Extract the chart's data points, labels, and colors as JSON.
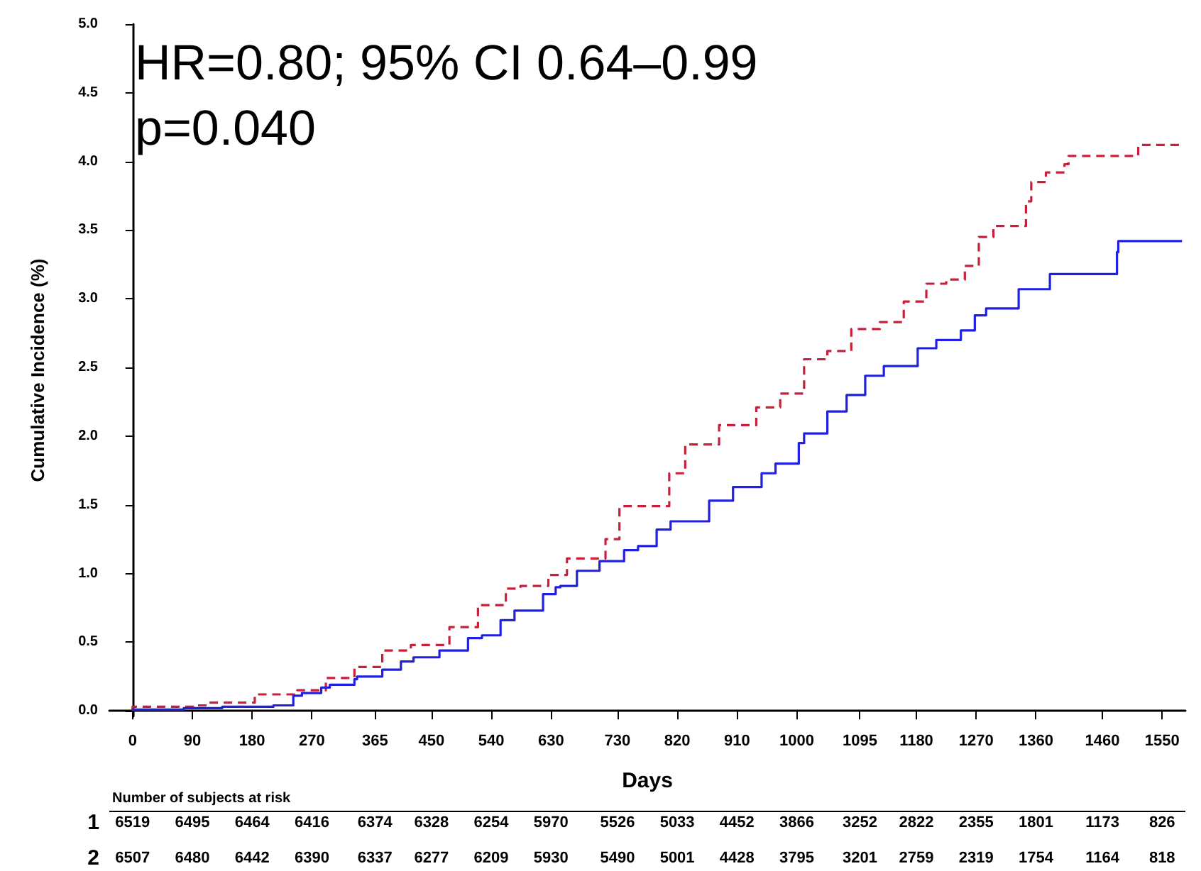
{
  "chart_data": {
    "type": "step",
    "xlabel": "Days",
    "ylabel": "Cumulative Incidence (%)",
    "annotations": [
      "HR=0.80; 95% CI 0.64–0.99",
      "p=0.040",
      "Number of subjects at risk",
      "1 6519 6495 6464 6416 6374 6328 6254 5970 5526 5033 4452 3866 3252 2822 2355 1801 1173 826",
      "2 6507 6480 6442 6390 6337 6277 6209 5930 5490 5001 4428 3795 3201 2759 2319 1754 1164 818"
    ],
    "xlim": [
      -35,
      1585
    ],
    "xticks": [
      0,
      90,
      180,
      270,
      365,
      450,
      540,
      630,
      730,
      820,
      910,
      1000,
      1095,
      1180,
      1270,
      1360,
      1460,
      1550
    ],
    "ylim": [
      -0.04,
      5.0
    ],
    "yticks": [
      {
        "value": 0,
        "label": "0.0"
      },
      {
        "value": 0.5,
        "label": "0.5"
      },
      {
        "value": 1,
        "label": "1.0"
      },
      {
        "value": 1.5,
        "label": "1.5"
      },
      {
        "value": 2,
        "label": "2.0"
      },
      {
        "value": 2.5,
        "label": "2.5"
      },
      {
        "value": 3,
        "label": "3.0"
      },
      {
        "value": 3.5,
        "label": "3.5"
      },
      {
        "value": 4,
        "label": "4.0"
      },
      {
        "value": 4.5,
        "label": "4.5"
      },
      {
        "value": 5,
        "label": "5.0"
      }
    ],
    "grid": false,
    "marker": "none",
    "series": [
      {
        "color": "#c8203a",
        "line_style": "dashed",
        "x": [
          0,
          92,
          113,
          184,
          248,
          291,
          334,
          376,
          419,
          477,
          520,
          562,
          584,
          626,
          654,
          712,
          733,
          776,
          808,
          832,
          883,
          939,
          975,
          1011,
          1046,
          1082,
          1125,
          1161,
          1195,
          1225,
          1253,
          1274,
          1296,
          1311,
          1345,
          1353,
          1375,
          1403,
          1409,
          1430,
          1514,
          1516,
          1580
        ],
        "values": [
          0,
          0.03,
          0.04,
          0.06,
          0.12,
          0.15,
          0.24,
          0.32,
          0.44,
          0.48,
          0.61,
          0.77,
          0.89,
          0.91,
          0.99,
          1.11,
          1.25,
          1.49,
          1.49,
          1.73,
          1.94,
          2.08,
          2.21,
          2.31,
          2.56,
          2.62,
          2.78,
          2.83,
          2.98,
          3.11,
          3.14,
          3.24,
          3.45,
          3.53,
          3.53,
          3.71,
          3.85,
          3.92,
          3.98,
          4.04,
          4.04,
          4.12,
          4.12
        ]
      },
      {
        "color": "#2020e0",
        "line_style": "solid",
        "x": [
          0,
          77,
          135,
          212,
          242,
          255,
          284,
          297,
          334,
          338,
          376,
          404,
          423,
          462,
          505,
          526,
          554,
          575,
          618,
          637,
          644,
          669,
          703,
          740,
          761,
          789,
          810,
          868,
          904,
          947,
          968,
          1003,
          1011,
          1046,
          1075,
          1103,
          1131,
          1182,
          1210,
          1247,
          1268,
          1285,
          1296,
          1334,
          1345,
          1381,
          1394,
          1482,
          1484,
          1495,
          1580
        ],
        "values": [
          0,
          0.01,
          0.02,
          0.03,
          0.04,
          0.11,
          0.13,
          0.17,
          0.19,
          0.23,
          0.25,
          0.3,
          0.36,
          0.39,
          0.44,
          0.53,
          0.55,
          0.66,
          0.73,
          0.85,
          0.9,
          0.91,
          1.02,
          1.09,
          1.17,
          1.2,
          1.32,
          1.38,
          1.53,
          1.63,
          1.73,
          1.8,
          1.95,
          2.02,
          2.18,
          2.3,
          2.44,
          2.51,
          2.64,
          2.7,
          2.77,
          2.88,
          2.93,
          2.93,
          3.07,
          3.07,
          3.18,
          3.18,
          3.34,
          3.42,
          3.42
        ]
      }
    ]
  }
}
